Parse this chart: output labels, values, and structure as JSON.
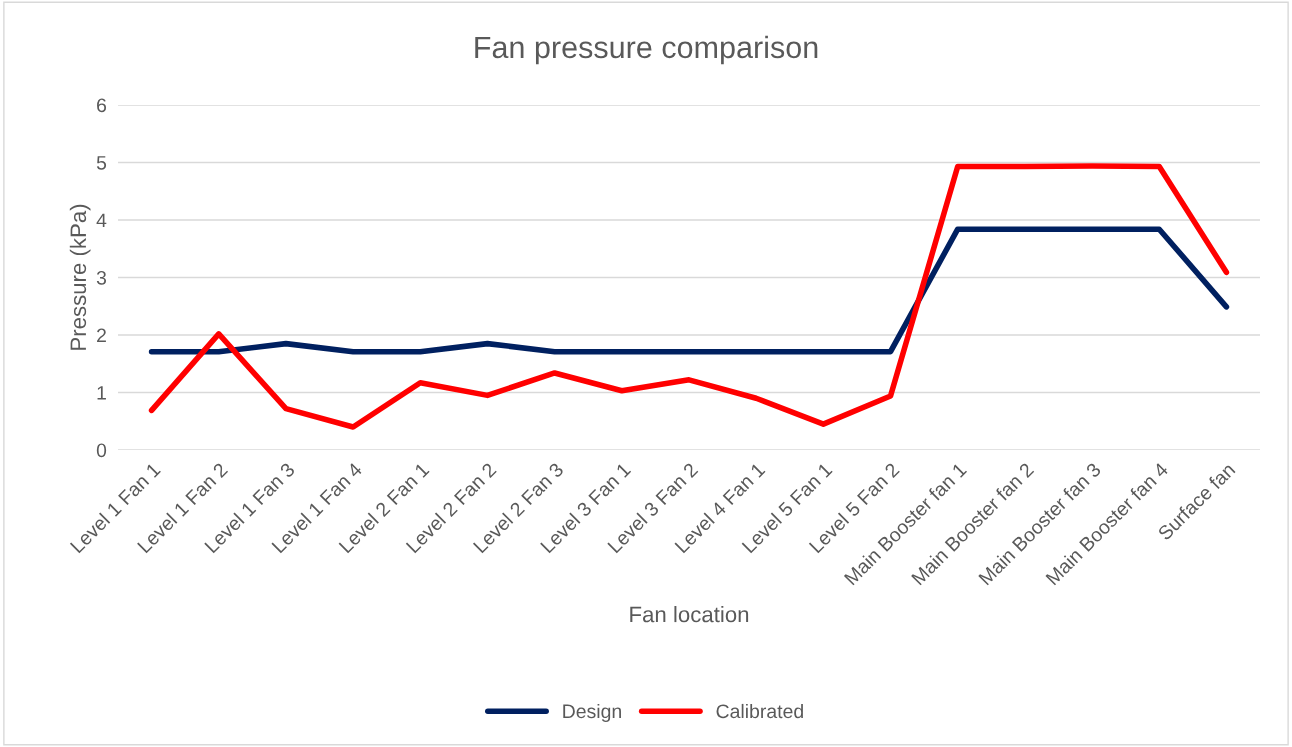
{
  "chart_data": {
    "type": "line",
    "title": "Fan pressure comparison",
    "xlabel": "Fan location",
    "ylabel": "Pressure (kPa)",
    "categories": [
      "Level 1 Fan 1",
      "Level 1 Fan 2",
      "Level 1 Fan 3",
      "Level 1 Fan 4",
      "Level 2 Fan 1",
      "Level 2 Fan 2",
      "Level 2 Fan 3",
      "Level 3 Fan 1",
      "Level 3 Fan 2",
      "Level 4 Fan 1",
      "Level 5 Fan 1",
      "Level 5 Fan 2",
      "Main Booster fan 1",
      "Main Booster fan 2",
      "Main Booster fan 3",
      "Main Booster fan 4",
      "Surface fan"
    ],
    "series": [
      {
        "name": "Design",
        "color": "#002060",
        "values": [
          1.71,
          1.71,
          1.85,
          1.71,
          1.71,
          1.85,
          1.71,
          1.71,
          1.71,
          1.71,
          1.71,
          1.71,
          3.84,
          3.84,
          3.84,
          3.84,
          2.49
        ]
      },
      {
        "name": "Calibrated",
        "color": "#ff0000",
        "values": [
          0.69,
          2.02,
          0.72,
          0.4,
          1.17,
          0.95,
          1.34,
          1.03,
          1.22,
          0.9,
          0.45,
          0.94,
          4.93,
          4.93,
          4.94,
          4.93,
          3.09
        ]
      }
    ],
    "ylim": [
      0,
      6
    ],
    "yticks": [
      0,
      1,
      2,
      3,
      4,
      5,
      6
    ],
    "grid": "y",
    "legend": "bottom",
    "marker": "none",
    "line_style": "solid"
  }
}
